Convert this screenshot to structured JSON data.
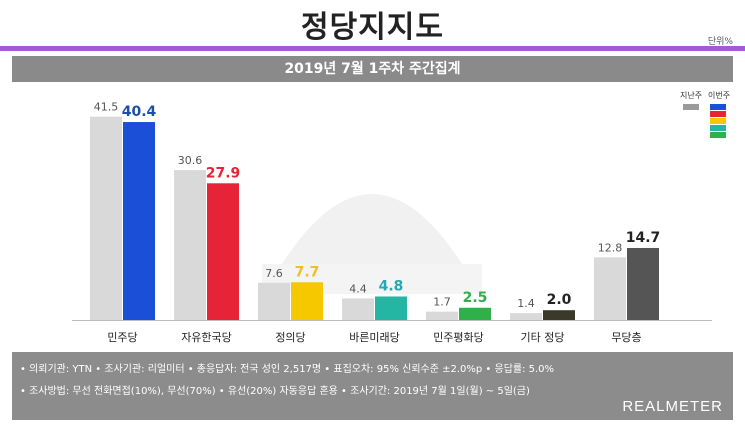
{
  "header": {
    "title": "정당지지도",
    "unit": "단위%",
    "subtitle": "2019년 7월 1주차 주간집계"
  },
  "legend": {
    "prev_label": "지난주",
    "curr_label": "이번주"
  },
  "colors": {
    "prev": "#d9d9d9",
    "parties": [
      "#1b4fd8",
      "#e62337",
      "#f5c800",
      "#25b5a3",
      "#2fb04a",
      "#3a3a2a",
      "#555555"
    ],
    "labels": [
      "#1b4fa8",
      "#e62337",
      "#f0c020",
      "#25a8b5",
      "#2fb04a",
      "#222222",
      "#222222"
    ]
  },
  "chart_data": {
    "type": "bar",
    "categories": [
      "민주당",
      "자유한국당",
      "정의당",
      "바른미래당",
      "민주평화당",
      "기타 정당",
      "무당층"
    ],
    "series": [
      {
        "name": "지난주",
        "values": [
          41.5,
          30.6,
          7.6,
          4.4,
          1.7,
          1.4,
          12.8
        ]
      },
      {
        "name": "이번주",
        "values": [
          40.4,
          27.9,
          7.7,
          4.8,
          2.5,
          2.0,
          14.7
        ]
      }
    ],
    "ylim": [
      0,
      45
    ]
  },
  "footer": {
    "line1": "• 의뢰기관: YTN • 조사기관: 리얼미터 • 총응답자: 전국 성인 2,517명 • 표집오차: 95% 신뢰수준 ±2.0%p • 응답률: 5.0%",
    "line2": "• 조사방법: 무선 전화면접(10%), 무선(70%) • 유선(20%) 자동응답 혼용 • 조사기간: 2019년 7월 1일(월) ~ 5일(금)",
    "brand": "REALMETER"
  }
}
